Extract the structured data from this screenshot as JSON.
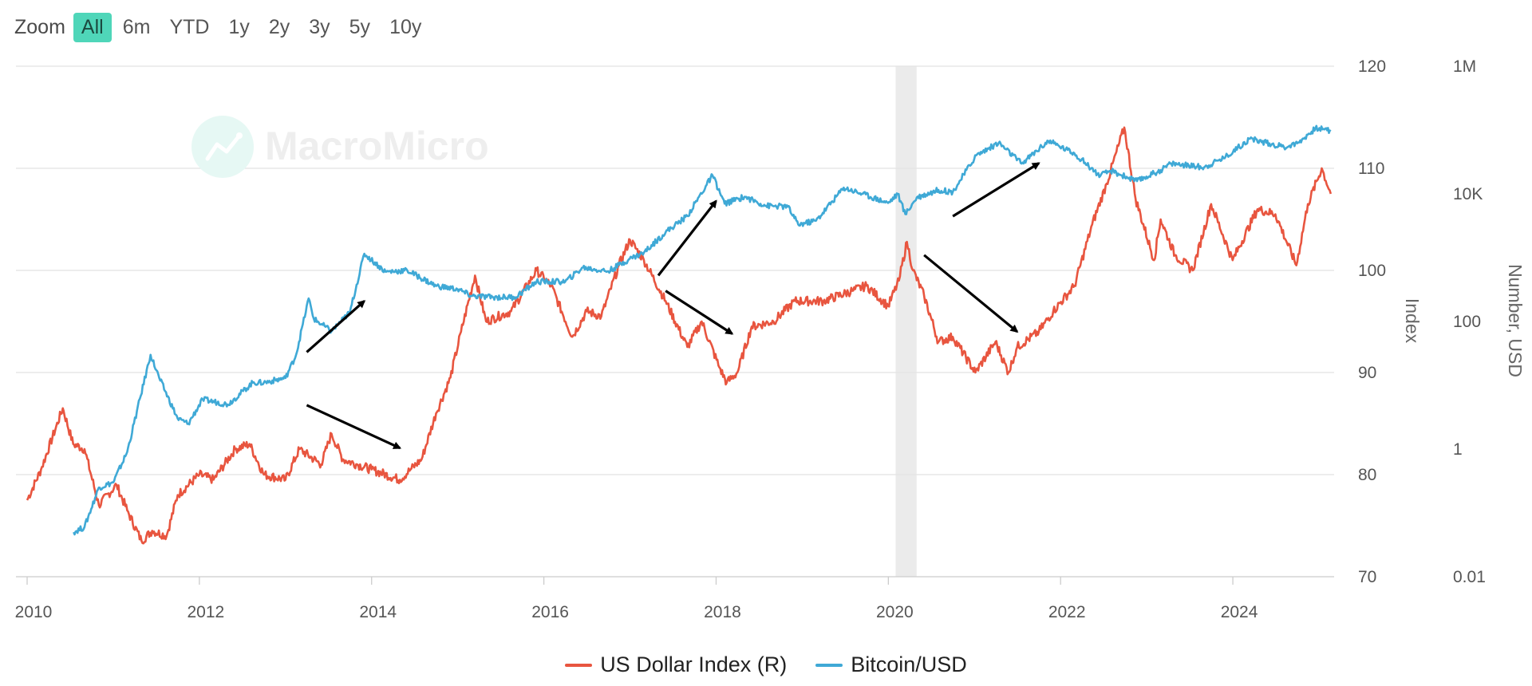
{
  "zoom": {
    "label": "Zoom",
    "buttons": [
      "All",
      "6m",
      "YTD",
      "1y",
      "2y",
      "3y",
      "5y",
      "10y"
    ],
    "selected": "All"
  },
  "watermark": "MacroMicro",
  "colors": {
    "dxy": "#e8553f",
    "btc": "#3fa9d6",
    "accent": "#4fd6b9",
    "recession": "#ebebeb"
  },
  "chart_data": {
    "type": "line",
    "x_ticks": [
      "2010",
      "2012",
      "2014",
      "2016",
      "2018",
      "2020",
      "2022",
      "2024"
    ],
    "xlim": [
      "2010-01-01",
      "2025-03-01"
    ],
    "axes": {
      "index": {
        "title": "Index",
        "ticks": [
          "70",
          "80",
          "90",
          "100",
          "110",
          "120"
        ],
        "ylim": [
          70,
          120
        ]
      },
      "number": {
        "title": "Number, USD",
        "scale": "log",
        "ticks": [
          "0.01",
          "1",
          "100",
          "10K",
          "1M"
        ],
        "ylim": [
          0.01,
          1000000
        ]
      }
    },
    "shaded_periods": [
      {
        "start": "2020-02-01",
        "end": "2020-04-30"
      }
    ],
    "series": [
      {
        "name": "US Dollar Index (R)",
        "axis": "index",
        "points": [
          [
            "2010-01-01",
            77.5
          ],
          [
            "2010-03-01",
            80.5
          ],
          [
            "2010-06-01",
            86.5
          ],
          [
            "2010-07-15",
            83.0
          ],
          [
            "2010-09-01",
            82.5
          ],
          [
            "2010-11-01",
            77.0
          ],
          [
            "2011-01-15",
            79.0
          ],
          [
            "2011-03-01",
            76.5
          ],
          [
            "2011-05-01",
            73.5
          ],
          [
            "2011-06-15",
            74.5
          ],
          [
            "2011-08-15",
            74.0
          ],
          [
            "2011-10-01",
            78.0
          ],
          [
            "2012-01-01",
            80.0
          ],
          [
            "2012-03-01",
            79.5
          ],
          [
            "2012-06-01",
            82.5
          ],
          [
            "2012-08-01",
            83.0
          ],
          [
            "2012-10-01",
            80.0
          ],
          [
            "2013-01-01",
            79.5
          ],
          [
            "2013-03-01",
            82.5
          ],
          [
            "2013-06-01",
            81.0
          ],
          [
            "2013-07-15",
            84.0
          ],
          [
            "2013-09-01",
            81.5
          ],
          [
            "2013-11-01",
            81.0
          ],
          [
            "2014-01-01",
            80.5
          ],
          [
            "2014-05-01",
            79.5
          ],
          [
            "2014-06-15",
            80.5
          ],
          [
            "2014-08-01",
            81.5
          ],
          [
            "2014-10-01",
            86.0
          ],
          [
            "2014-12-01",
            89.5
          ],
          [
            "2015-01-15",
            94.0
          ],
          [
            "2015-03-15",
            99.5
          ],
          [
            "2015-05-01",
            95.0
          ],
          [
            "2015-08-15",
            96.0
          ],
          [
            "2015-12-01",
            100.0
          ],
          [
            "2016-02-01",
            98.5
          ],
          [
            "2016-05-01",
            93.5
          ],
          [
            "2016-07-01",
            96.0
          ],
          [
            "2016-09-01",
            95.5
          ],
          [
            "2016-11-15",
            100.5
          ],
          [
            "2017-01-01",
            103.0
          ],
          [
            "2017-03-01",
            101.0
          ],
          [
            "2017-06-01",
            97.0
          ],
          [
            "2017-09-01",
            92.5
          ],
          [
            "2017-11-01",
            95.0
          ],
          [
            "2018-01-15",
            90.5
          ],
          [
            "2018-02-15",
            89.0
          ],
          [
            "2018-04-01",
            90.0
          ],
          [
            "2018-06-01",
            94.5
          ],
          [
            "2018-09-01",
            95.0
          ],
          [
            "2018-12-01",
            97.0
          ],
          [
            "2019-04-01",
            97.0
          ],
          [
            "2019-08-01",
            98.0
          ],
          [
            "2019-10-01",
            98.5
          ],
          [
            "2019-12-31",
            96.5
          ],
          [
            "2020-02-15",
            99.0
          ],
          [
            "2020-03-20",
            102.8
          ],
          [
            "2020-04-15",
            100.0
          ],
          [
            "2020-06-01",
            97.5
          ],
          [
            "2020-08-01",
            93.0
          ],
          [
            "2020-10-01",
            93.5
          ],
          [
            "2021-01-05",
            90.0
          ],
          [
            "2021-03-31",
            93.0
          ],
          [
            "2021-05-25",
            90.0
          ],
          [
            "2021-07-01",
            92.5
          ],
          [
            "2021-10-01",
            94.0
          ],
          [
            "2021-12-01",
            96.0
          ],
          [
            "2022-03-01",
            98.5
          ],
          [
            "2022-05-15",
            104.5
          ],
          [
            "2022-07-15",
            108.5
          ],
          [
            "2022-09-28",
            114.0
          ],
          [
            "2022-11-15",
            107.0
          ],
          [
            "2023-02-01",
            101.0
          ],
          [
            "2023-03-01",
            105.0
          ],
          [
            "2023-05-01",
            101.5
          ],
          [
            "2023-07-15",
            100.0
          ],
          [
            "2023-10-01",
            106.5
          ],
          [
            "2023-12-31",
            101.0
          ],
          [
            "2024-04-15",
            106.0
          ],
          [
            "2024-06-30",
            105.5
          ],
          [
            "2024-09-27",
            100.5
          ],
          [
            "2024-11-15",
            106.5
          ],
          [
            "2025-01-13",
            110.0
          ],
          [
            "2025-02-20",
            107.5
          ]
        ]
      },
      {
        "name": "Bitcoin/USD",
        "axis": "number",
        "points": [
          [
            "2010-07-17",
            0.05
          ],
          [
            "2010-09-01",
            0.06
          ],
          [
            "2010-11-01",
            0.25
          ],
          [
            "2011-01-01",
            0.3
          ],
          [
            "2011-03-01",
            0.9
          ],
          [
            "2011-06-08",
            30
          ],
          [
            "2011-07-15",
            13
          ],
          [
            "2011-10-01",
            3
          ],
          [
            "2011-11-15",
            2.5
          ],
          [
            "2012-01-15",
            6
          ],
          [
            "2012-05-01",
            5
          ],
          [
            "2012-08-15",
            11
          ],
          [
            "2012-10-01",
            11
          ],
          [
            "2013-01-01",
            13
          ],
          [
            "2013-02-15",
            30
          ],
          [
            "2013-04-09",
            230
          ],
          [
            "2013-05-01",
            110
          ],
          [
            "2013-07-15",
            70
          ],
          [
            "2013-10-01",
            140
          ],
          [
            "2013-12-01",
            1150
          ],
          [
            "2014-03-01",
            600
          ],
          [
            "2014-06-01",
            630
          ],
          [
            "2014-10-01",
            360
          ],
          [
            "2014-12-31",
            320
          ],
          [
            "2015-03-01",
            250
          ],
          [
            "2015-06-01",
            240
          ],
          [
            "2015-09-01",
            240
          ],
          [
            "2015-12-01",
            420
          ],
          [
            "2016-04-01",
            420
          ],
          [
            "2016-06-15",
            700
          ],
          [
            "2016-10-01",
            610
          ],
          [
            "2016-12-31",
            960
          ],
          [
            "2017-03-01",
            1200
          ],
          [
            "2017-06-01",
            2500
          ],
          [
            "2017-09-01",
            4500
          ],
          [
            "2017-12-17",
            19500
          ],
          [
            "2018-02-06",
            7000
          ],
          [
            "2018-05-01",
            9000
          ],
          [
            "2018-08-01",
            6500
          ],
          [
            "2018-11-01",
            6300
          ],
          [
            "2018-12-15",
            3300
          ],
          [
            "2019-03-01",
            3800
          ],
          [
            "2019-06-26",
            12500
          ],
          [
            "2019-09-15",
            10000
          ],
          [
            "2019-12-31",
            7200
          ],
          [
            "2020-02-10",
            10000
          ],
          [
            "2020-03-13",
            4800
          ],
          [
            "2020-05-01",
            8800
          ],
          [
            "2020-08-01",
            11500
          ],
          [
            "2020-10-01",
            10700
          ],
          [
            "2021-01-08",
            40000
          ],
          [
            "2021-04-14",
            63000
          ],
          [
            "2021-07-20",
            29800
          ],
          [
            "2021-11-10",
            67500
          ],
          [
            "2022-03-01",
            43000
          ],
          [
            "2022-06-18",
            19000
          ],
          [
            "2022-08-01",
            23000
          ],
          [
            "2022-11-21",
            15800
          ],
          [
            "2023-03-01",
            23500
          ],
          [
            "2023-04-15",
            30000
          ],
          [
            "2023-09-01",
            26000
          ],
          [
            "2023-12-01",
            38000
          ],
          [
            "2024-03-14",
            73000
          ],
          [
            "2024-08-05",
            54000
          ],
          [
            "2024-10-01",
            62000
          ],
          [
            "2024-12-17",
            106000
          ],
          [
            "2025-01-20",
            104000
          ],
          [
            "2025-02-20",
            96000
          ]
        ]
      }
    ],
    "annotations": [
      {
        "from": [
          "2013-04-01",
          92
        ],
        "to": [
          "2013-12-01",
          97
        ]
      },
      {
        "from": [
          "2013-04-01",
          86.8
        ],
        "to": [
          "2014-05-01",
          82.6
        ]
      },
      {
        "from": [
          "2017-05-01",
          99.5
        ],
        "to": [
          "2018-01-01",
          106.8
        ]
      },
      {
        "from": [
          "2017-06-01",
          98.0
        ],
        "to": [
          "2018-03-10",
          93.8
        ]
      },
      {
        "from": [
          "2020-10-01",
          105.3
        ],
        "to": [
          "2021-10-01",
          110.5
        ]
      },
      {
        "from": [
          "2020-06-01",
          101.5
        ],
        "to": [
          "2021-07-01",
          94.0
        ]
      }
    ]
  }
}
